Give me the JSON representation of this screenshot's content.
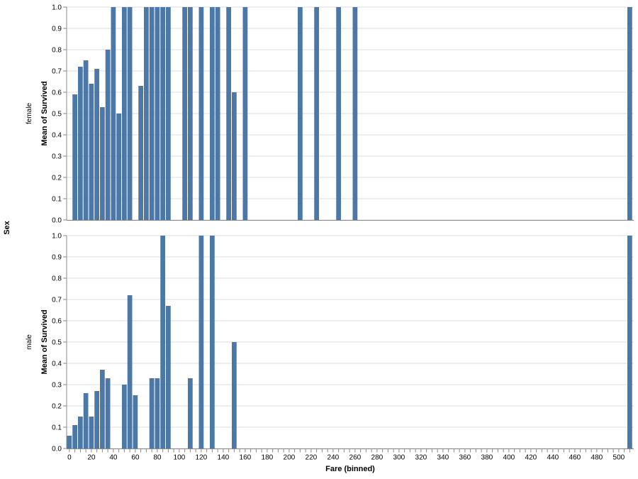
{
  "chart_data": {
    "type": "bar",
    "row_field_title": "Sex",
    "xlabel": "Fare (binned)",
    "ylabel": "Mean of Survived",
    "bin_step": 5,
    "xlim": [
      0,
      515
    ],
    "ylim": [
      0,
      1
    ],
    "x_ticks": [
      0,
      20,
      40,
      60,
      80,
      100,
      120,
      140,
      160,
      180,
      200,
      220,
      240,
      260,
      280,
      300,
      320,
      340,
      360,
      380,
      400,
      420,
      440,
      460,
      480,
      500
    ],
    "y_ticks": [
      "0.0",
      "0.1",
      "0.2",
      "0.3",
      "0.4",
      "0.5",
      "0.6",
      "0.7",
      "0.8",
      "0.9",
      "1.0"
    ],
    "grid": true,
    "bar_color": "#4c78a8",
    "facets": [
      {
        "name": "female",
        "bins": [
          {
            "x": 5,
            "y": 0.59
          },
          {
            "x": 10,
            "y": 0.72
          },
          {
            "x": 15,
            "y": 0.75
          },
          {
            "x": 20,
            "y": 0.64
          },
          {
            "x": 25,
            "y": 0.71
          },
          {
            "x": 30,
            "y": 0.53
          },
          {
            "x": 35,
            "y": 0.8
          },
          {
            "x": 40,
            "y": 1.0
          },
          {
            "x": 45,
            "y": 0.5
          },
          {
            "x": 50,
            "y": 1.0
          },
          {
            "x": 55,
            "y": 1.0
          },
          {
            "x": 65,
            "y": 0.63
          },
          {
            "x": 70,
            "y": 1.0
          },
          {
            "x": 75,
            "y": 1.0
          },
          {
            "x": 80,
            "y": 1.0
          },
          {
            "x": 85,
            "y": 1.0
          },
          {
            "x": 90,
            "y": 1.0
          },
          {
            "x": 105,
            "y": 1.0
          },
          {
            "x": 110,
            "y": 1.0
          },
          {
            "x": 120,
            "y": 1.0
          },
          {
            "x": 130,
            "y": 1.0
          },
          {
            "x": 135,
            "y": 1.0
          },
          {
            "x": 145,
            "y": 1.0
          },
          {
            "x": 150,
            "y": 0.6
          },
          {
            "x": 160,
            "y": 1.0
          },
          {
            "x": 210,
            "y": 1.0
          },
          {
            "x": 225,
            "y": 1.0
          },
          {
            "x": 245,
            "y": 1.0
          },
          {
            "x": 260,
            "y": 1.0
          },
          {
            "x": 510,
            "y": 1.0
          }
        ]
      },
      {
        "name": "male",
        "bins": [
          {
            "x": 0,
            "y": 0.06
          },
          {
            "x": 5,
            "y": 0.11
          },
          {
            "x": 10,
            "y": 0.15
          },
          {
            "x": 15,
            "y": 0.26
          },
          {
            "x": 20,
            "y": 0.15
          },
          {
            "x": 25,
            "y": 0.27
          },
          {
            "x": 30,
            "y": 0.37
          },
          {
            "x": 35,
            "y": 0.33
          },
          {
            "x": 50,
            "y": 0.3
          },
          {
            "x": 55,
            "y": 0.72
          },
          {
            "x": 60,
            "y": 0.25
          },
          {
            "x": 75,
            "y": 0.33
          },
          {
            "x": 80,
            "y": 0.33
          },
          {
            "x": 85,
            "y": 1.0
          },
          {
            "x": 90,
            "y": 0.67
          },
          {
            "x": 110,
            "y": 0.33
          },
          {
            "x": 120,
            "y": 1.0
          },
          {
            "x": 130,
            "y": 1.0
          },
          {
            "x": 150,
            "y": 0.5
          },
          {
            "x": 510,
            "y": 1.0
          }
        ]
      }
    ]
  }
}
